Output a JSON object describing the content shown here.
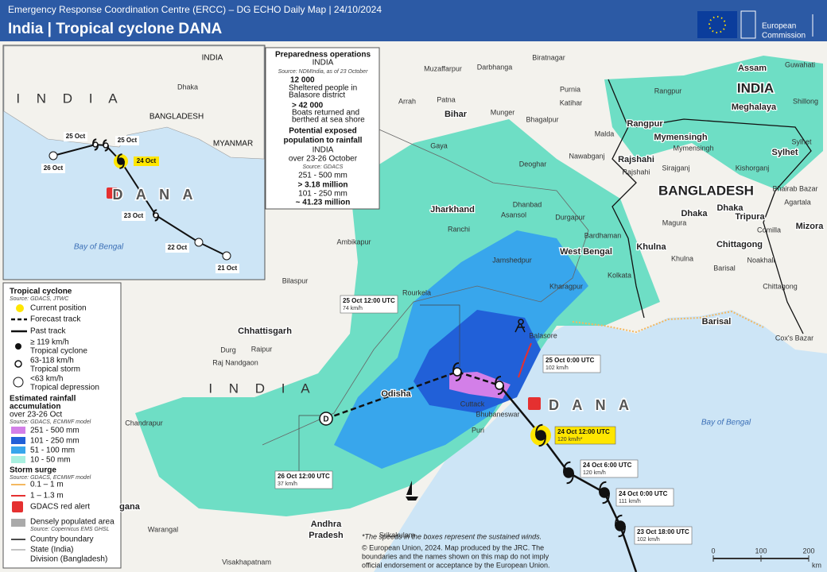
{
  "header": {
    "org_line": "Emergency Response Coordination Centre (ERCC) – DG ECHO Daily Map | 24/10/2024",
    "title": "India | Tropical cyclone DANA",
    "logo": [
      "European",
      "Commission"
    ]
  },
  "inset": {
    "labels": [
      "INDIA",
      "I N D I A",
      "Dhaka",
      "BANGLADESH",
      "MYANMAR",
      "25 Oct",
      "25 Oct",
      "24 Oct",
      "26 Oct",
      "D A N A",
      "23 Oct",
      "22 Oct",
      "21 Oct",
      "Bay of Bengal"
    ]
  },
  "preparedness": {
    "title": "Preparedness  operations",
    "country": "INDIA",
    "source": "Source: NDMIndia,  as of 23 October",
    "sheltered_value": "12 000",
    "sheltered_text": [
      "Sheltered people in",
      "Balasore district"
    ],
    "boats_value": "> 42 000",
    "boats_text": [
      "Boats returned and",
      "berthed at sea shore"
    ],
    "exposure_title": [
      "Potential exposed",
      "population  to rainfall"
    ],
    "exposure_country": "INDIA",
    "exposure_period": "over 23-26 October",
    "exposure_source": "Source: GDACS",
    "rows": [
      "251 - 500 mm",
      "> 3.18  million",
      "101 - 250 mm",
      "~ 41.23  million"
    ]
  },
  "track_labels": [
    {
      "time": "25 Oct 12:00 UTC",
      "speed": "74 km/h"
    },
    {
      "time": "25 Oct 0:00 UTC",
      "speed": "102 km/h"
    },
    {
      "time": "24 Oct 12:00 UTC",
      "speed": "120 km/h*"
    },
    {
      "time": "24 Oct 6:00 UTC",
      "speed": "120 km/h"
    },
    {
      "time": "24 Oct 0:00 UTC",
      "speed": "111 km/h"
    },
    {
      "time": "23 Oct 18:00 UTC",
      "speed": "102 km/h"
    },
    {
      "time": "26 Oct 12:00 UTC",
      "speed": "37 km/h"
    }
  ],
  "storm_name": "D A N A",
  "places": [
    "Muzaffarpur",
    "Darbhanga",
    "Biratnagar",
    "Purnia",
    "Katihar",
    "Arrah",
    "Patna",
    "Bihar",
    "Munger",
    "Bhagalpur",
    "Gaya",
    "Malda",
    "Nawabganj",
    "Rajshahi",
    "Rajshahi",
    "Deoghar",
    "Rangpur",
    "Rangpur",
    "Assam",
    "Guwahati",
    "INDIA",
    "Meghalaya",
    "Shillong",
    "Sylhet",
    "Sylhet",
    "Mymensingh",
    "Mymensingh",
    "Sirajganj",
    "Kishorganj",
    "BANGLADESH",
    "Dhaka",
    "Dhaka",
    "Bhairab Bazar",
    "Agartala",
    "Tripura",
    "Comilla",
    "Mizora",
    "Jharkhand",
    "Dhanbad",
    "Asansol",
    "Ranchi",
    "Durgapur",
    "Bardhaman",
    "Magura",
    "Khulna",
    "Khulna",
    "Chittagong",
    "Noakhali",
    "Barisal",
    "Chittagong",
    "Jamshedpur",
    "West Bengal",
    "Kolkata",
    "Kharagpur",
    "Barisal",
    "Cox's Bazar",
    "Balasore",
    "Rourkela",
    "Bilaspur",
    "Chhattisgarh",
    "Raipur",
    "Durg",
    "Raj Nandgaon",
    "I N D I A",
    "Odisha",
    "Cuttack",
    "Bhubaneswar",
    "Puri",
    "Chandrapur",
    "Ambikapur",
    "Srikakulam",
    "Andhra",
    "Pradesh",
    "Warangal",
    "Visakhapatnam",
    "gana",
    "Bay of Bengal"
  ],
  "legend": {
    "cyclone_title": "Tropical cyclone",
    "cyclone_source": "Source: GDACS, JTWC",
    "current": "Current position",
    "forecast": "Forecast track",
    "past": "Past track",
    "tc_speed": "≥ 119 km/h",
    "tc": "Tropical cyclone",
    "ts_speed": "63-118 km/h",
    "ts": "Tropical storm",
    "td_speed": "<63 km/h",
    "td": "Tropical depression",
    "rain_title": [
      "Estimated rainfall",
      "accumulation"
    ],
    "rain_period": "over 23-26 Oct",
    "rain_source": "Source: GDACS, ECMWF model",
    "rain_bins": [
      "251 - 500 mm",
      "101 - 250 mm",
      "51 - 100 mm",
      "10 - 50 mm"
    ],
    "surge_title": "Storm surge",
    "surge_source": "Source: GDACS, ECMWF model",
    "surge_bins": [
      "0.1 – 1 m",
      "1 – 1.3 m"
    ],
    "alert": "GDACS red alert",
    "dense": "Densely populated area",
    "dense_source": "Source: Copernicus EMS GHSL",
    "country": "Country boundary",
    "state": "State (India)",
    "division": "Division (Bangladesh)"
  },
  "footnote": "*The speeds in the boxes represent the sustained winds.",
  "copyright": [
    "© European Union, 2024. Map produced by the JRC. The",
    "boundaries and the names shown on this map do not imply",
    "official endorsement or acceptance by the European Union."
  ],
  "scale": {
    "ticks": [
      0,
      100,
      200
    ],
    "unit": "km"
  }
}
